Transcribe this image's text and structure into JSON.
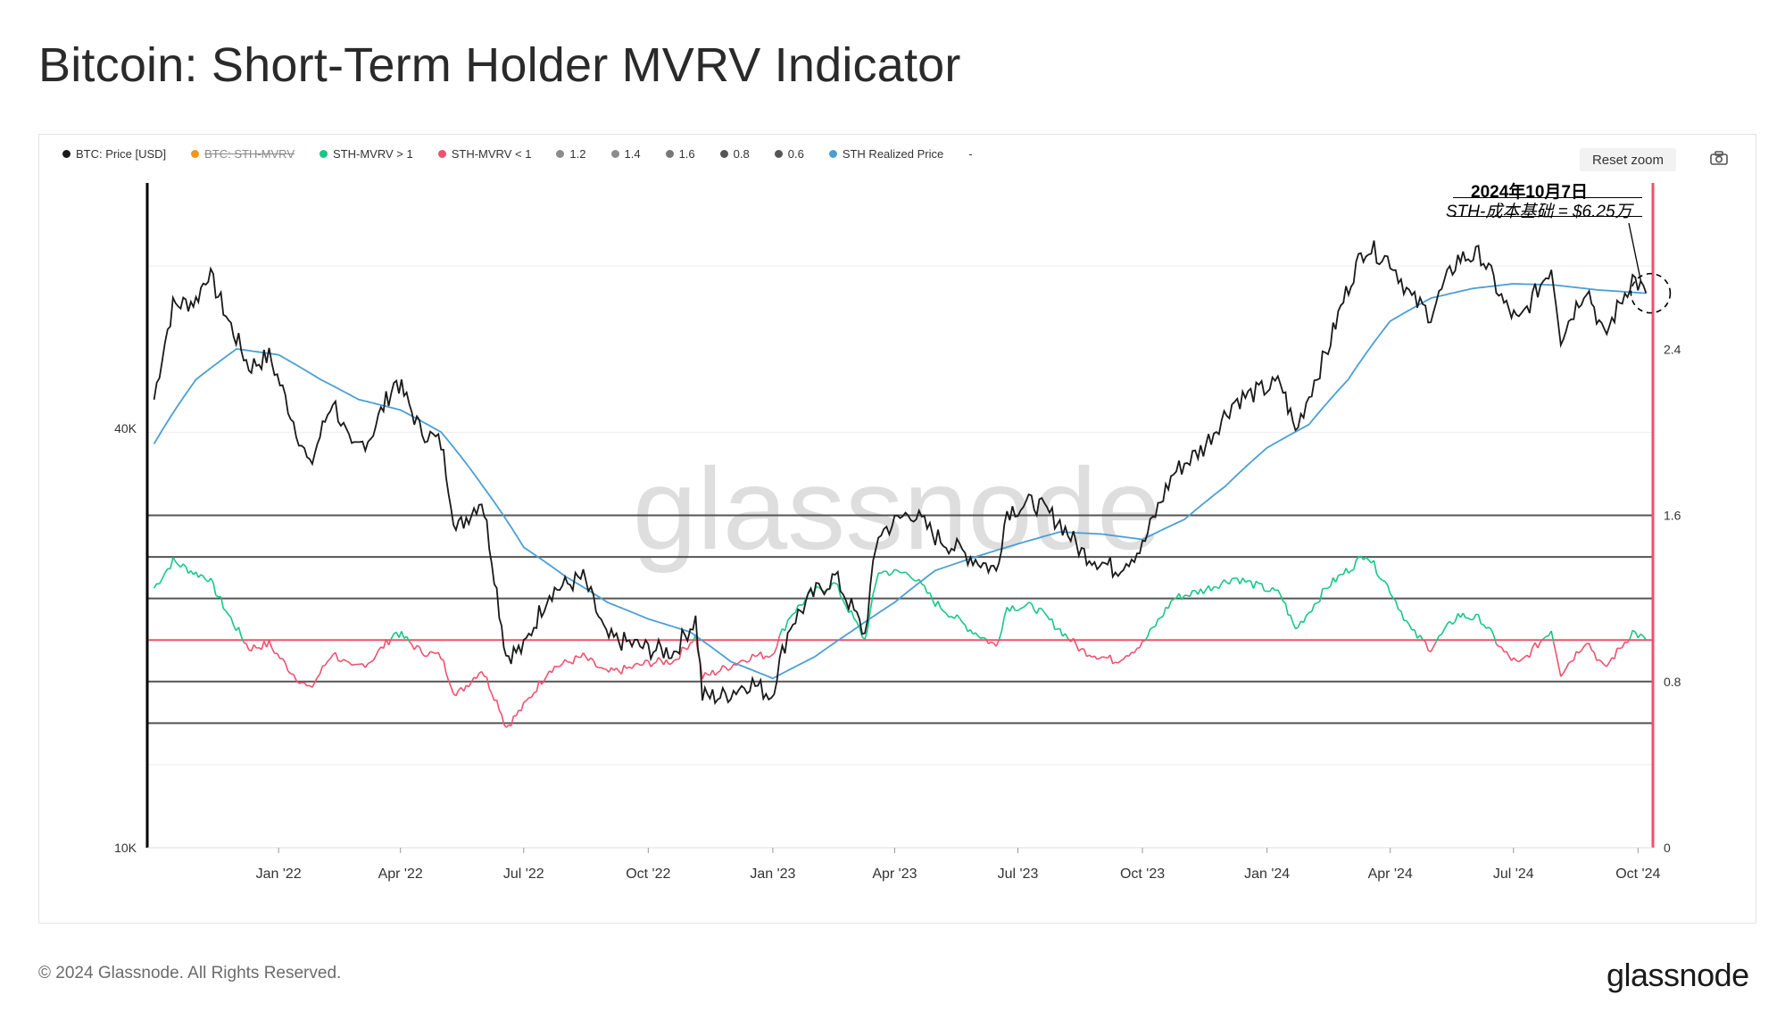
{
  "title": "Bitcoin: Short-Term Holder MVRV Indicator",
  "copyright": "© 2024 Glassnode. All Rights Reserved.",
  "brand": "glassnode",
  "watermark": "glassnode",
  "reset_zoom_label": "Reset zoom",
  "camera_icon": "camera-icon",
  "annotation": {
    "date": "2024年10月7日",
    "note": "STH-成本基础 = $6.25万"
  },
  "legend": [
    {
      "label": "BTC: Price [USD]",
      "color": "#1a1a1a",
      "hidden": false
    },
    {
      "label": "BTC: STH-MVRV",
      "color": "#f7931a",
      "hidden": true
    },
    {
      "label": "STH-MVRV > 1",
      "color": "#16c784",
      "hidden": false
    },
    {
      "label": "STH-MVRV < 1",
      "color": "#f0506e",
      "hidden": false
    },
    {
      "label": "1.2",
      "color": "#8c8c8c",
      "hidden": false
    },
    {
      "label": "1.4",
      "color": "#8c8c8c",
      "hidden": false
    },
    {
      "label": "1.6",
      "color": "#777777",
      "hidden": false
    },
    {
      "label": "0.8",
      "color": "#555555",
      "hidden": false
    },
    {
      "label": "0.6",
      "color": "#555555",
      "hidden": false
    },
    {
      "label": "STH Realized Price",
      "color": "#4a9fd5",
      "hidden": false
    },
    {
      "label": "-",
      "color": "",
      "hidden": false
    }
  ],
  "chart_data": {
    "type": "line",
    "title": "Bitcoin: Short-Term Holder MVRV Indicator",
    "x_ticks": [
      "Jan '22",
      "Apr '22",
      "Jul '22",
      "Oct '22",
      "Jan '23",
      "Apr '23",
      "Jul '23",
      "Oct '23",
      "Jan '24",
      "Apr '24",
      "Jul '24",
      "Oct '24"
    ],
    "y_left": {
      "scale": "log",
      "ticks": [
        "10K",
        "40K"
      ],
      "tick_values": [
        10000,
        40000
      ],
      "range": [
        10000,
        90000
      ]
    },
    "y_right": {
      "scale": "linear",
      "ticks": [
        "0",
        "0.8",
        "1.6",
        "2.4"
      ],
      "tick_values": [
        0,
        0.8,
        1.6,
        2.4
      ],
      "range": [
        0,
        3.2
      ]
    },
    "reference_lines": [
      {
        "name": "1.4",
        "value": 1.4,
        "color": "#555555"
      },
      {
        "name": "1.2",
        "value": 1.2,
        "color": "#555555"
      },
      {
        "name": "1.6",
        "value": 1.6,
        "color": "#555555"
      },
      {
        "name": "0.8",
        "value": 0.8,
        "color": "#555555"
      },
      {
        "name": "0.6",
        "value": 0.6,
        "color": "#555555"
      },
      {
        "name": "1",
        "value": 1.0,
        "color": "#f0506e"
      }
    ],
    "series": [
      {
        "name": "BTC: Price [USD]",
        "axis": "left",
        "color": "#1a1a1a",
        "points": [
          [
            "2021-10-01",
            44000
          ],
          [
            "2021-10-15",
            60000
          ],
          [
            "2021-11-01",
            61000
          ],
          [
            "2021-11-10",
            67000
          ],
          [
            "2021-11-25",
            57000
          ],
          [
            "2021-12-10",
            49000
          ],
          [
            "2021-12-25",
            50800
          ],
          [
            "2022-01-10",
            42000
          ],
          [
            "2022-01-24",
            35000
          ],
          [
            "2022-02-10",
            44000
          ],
          [
            "2022-02-24",
            37000
          ],
          [
            "2022-03-10",
            39000
          ],
          [
            "2022-03-29",
            47000
          ],
          [
            "2022-04-15",
            40000
          ],
          [
            "2022-05-01",
            38000
          ],
          [
            "2022-05-12",
            28500
          ],
          [
            "2022-05-31",
            31700
          ],
          [
            "2022-06-13",
            22000
          ],
          [
            "2022-06-18",
            18900
          ],
          [
            "2022-07-01",
            19300
          ],
          [
            "2022-07-20",
            23300
          ],
          [
            "2022-08-14",
            24400
          ],
          [
            "2022-08-31",
            20000
          ],
          [
            "2022-09-15",
            19700
          ],
          [
            "2022-10-01",
            19300
          ],
          [
            "2022-10-20",
            19100
          ],
          [
            "2022-11-05",
            21300
          ],
          [
            "2022-11-10",
            16500
          ],
          [
            "2022-11-25",
            16500
          ],
          [
            "2022-12-15",
            17300
          ],
          [
            "2022-12-31",
            16550
          ],
          [
            "2023-01-14",
            20900
          ],
          [
            "2023-01-31",
            23100
          ],
          [
            "2023-02-16",
            24500
          ],
          [
            "2023-03-10",
            20200
          ],
          [
            "2023-03-20",
            28200
          ],
          [
            "2023-04-13",
            30400
          ],
          [
            "2023-05-01",
            28000
          ],
          [
            "2023-05-25",
            26300
          ],
          [
            "2023-06-15",
            25000
          ],
          [
            "2023-06-23",
            30500
          ],
          [
            "2023-07-13",
            31300
          ],
          [
            "2023-08-01",
            29300
          ],
          [
            "2023-08-17",
            26600
          ],
          [
            "2023-09-11",
            25100
          ],
          [
            "2023-10-01",
            27000
          ],
          [
            "2023-10-24",
            34500
          ],
          [
            "2023-11-15",
            37500
          ],
          [
            "2023-12-08",
            43800
          ],
          [
            "2024-01-11",
            46500
          ],
          [
            "2024-01-22",
            39500
          ],
          [
            "2024-02-15",
            52000
          ],
          [
            "2024-03-05",
            67000
          ],
          [
            "2024-03-14",
            73000
          ],
          [
            "2024-04-01",
            69700
          ],
          [
            "2024-04-17",
            61300
          ],
          [
            "2024-05-01",
            58300
          ],
          [
            "2024-05-21",
            70100
          ],
          [
            "2024-06-07",
            71000
          ],
          [
            "2024-06-24",
            60300
          ],
          [
            "2024-07-05",
            56600
          ],
          [
            "2024-07-29",
            68200
          ],
          [
            "2024-08-05",
            54000
          ],
          [
            "2024-08-24",
            64000
          ],
          [
            "2024-09-06",
            53900
          ],
          [
            "2024-09-27",
            65800
          ],
          [
            "2024-10-07",
            62500
          ]
        ]
      },
      {
        "name": "STH Realized Price",
        "axis": "left",
        "color": "#4a9fd5",
        "points": [
          [
            "2021-10-01",
            38000
          ],
          [
            "2021-11-01",
            47000
          ],
          [
            "2021-12-01",
            52000
          ],
          [
            "2022-01-01",
            51000
          ],
          [
            "2022-02-01",
            47000
          ],
          [
            "2022-03-01",
            44000
          ],
          [
            "2022-04-01",
            42500
          ],
          [
            "2022-05-01",
            39500
          ],
          [
            "2022-06-01",
            33000
          ],
          [
            "2022-07-01",
            27000
          ],
          [
            "2022-08-01",
            24500
          ],
          [
            "2022-09-01",
            22500
          ],
          [
            "2022-10-01",
            21300
          ],
          [
            "2022-11-01",
            20400
          ],
          [
            "2022-12-01",
            18500
          ],
          [
            "2023-01-01",
            17500
          ],
          [
            "2023-02-01",
            18800
          ],
          [
            "2023-03-01",
            20500
          ],
          [
            "2023-04-01",
            22500
          ],
          [
            "2023-05-01",
            25000
          ],
          [
            "2023-06-01",
            26200
          ],
          [
            "2023-07-01",
            27300
          ],
          [
            "2023-08-01",
            28400
          ],
          [
            "2023-09-01",
            28200
          ],
          [
            "2023-10-01",
            27700
          ],
          [
            "2023-11-01",
            29600
          ],
          [
            "2023-12-01",
            33000
          ],
          [
            "2024-01-01",
            37500
          ],
          [
            "2024-02-01",
            40500
          ],
          [
            "2024-03-01",
            47000
          ],
          [
            "2024-04-01",
            57000
          ],
          [
            "2024-05-01",
            61500
          ],
          [
            "2024-06-01",
            63500
          ],
          [
            "2024-07-01",
            64500
          ],
          [
            "2024-08-01",
            64200
          ],
          [
            "2024-09-01",
            63200
          ],
          [
            "2024-10-07",
            62500
          ]
        ]
      },
      {
        "name": "BTC: STH-MVRV",
        "axis": "right",
        "colors": {
          "above_1": "#16c784",
          "below_1": "#f0506e"
        },
        "points": [
          [
            "2021-10-01",
            1.25
          ],
          [
            "2021-10-15",
            1.38
          ],
          [
            "2021-11-01",
            1.32
          ],
          [
            "2021-11-10",
            1.3
          ],
          [
            "2021-11-25",
            1.12
          ],
          [
            "2021-12-10",
            0.96
          ],
          [
            "2021-12-25",
            0.98
          ],
          [
            "2022-01-10",
            0.85
          ],
          [
            "2022-01-24",
            0.76
          ],
          [
            "2022-02-10",
            0.94
          ],
          [
            "2022-02-24",
            0.86
          ],
          [
            "2022-03-10",
            0.9
          ],
          [
            "2022-03-29",
            1.04
          ],
          [
            "2022-04-15",
            0.95
          ],
          [
            "2022-05-01",
            0.92
          ],
          [
            "2022-05-12",
            0.73
          ],
          [
            "2022-05-31",
            0.86
          ],
          [
            "2022-06-13",
            0.68
          ],
          [
            "2022-06-18",
            0.58
          ],
          [
            "2022-07-01",
            0.68
          ],
          [
            "2022-07-20",
            0.86
          ],
          [
            "2022-08-14",
            0.92
          ],
          [
            "2022-08-31",
            0.84
          ],
          [
            "2022-09-15",
            0.86
          ],
          [
            "2022-10-01",
            0.89
          ],
          [
            "2022-10-20",
            0.9
          ],
          [
            "2022-11-05",
            1.02
          ],
          [
            "2022-11-10",
            0.82
          ],
          [
            "2022-11-25",
            0.86
          ],
          [
            "2022-12-15",
            0.92
          ],
          [
            "2022-12-31",
            0.93
          ],
          [
            "2023-01-14",
            1.12
          ],
          [
            "2023-01-31",
            1.23
          ],
          [
            "2023-02-16",
            1.27
          ],
          [
            "2023-03-10",
            1.0
          ],
          [
            "2023-03-20",
            1.33
          ],
          [
            "2023-04-13",
            1.32
          ],
          [
            "2023-05-01",
            1.18
          ],
          [
            "2023-05-25",
            1.06
          ],
          [
            "2023-06-15",
            0.97
          ],
          [
            "2023-06-23",
            1.16
          ],
          [
            "2023-07-13",
            1.16
          ],
          [
            "2023-08-01",
            1.05
          ],
          [
            "2023-08-17",
            0.95
          ],
          [
            "2023-09-11",
            0.9
          ],
          [
            "2023-10-01",
            0.98
          ],
          [
            "2023-10-24",
            1.2
          ],
          [
            "2023-11-15",
            1.24
          ],
          [
            "2023-12-08",
            1.3
          ],
          [
            "2024-01-11",
            1.22
          ],
          [
            "2024-01-22",
            1.05
          ],
          [
            "2024-02-15",
            1.26
          ],
          [
            "2024-03-05",
            1.36
          ],
          [
            "2024-03-14",
            1.42
          ],
          [
            "2024-04-01",
            1.24
          ],
          [
            "2024-04-17",
            1.04
          ],
          [
            "2024-05-01",
            0.96
          ],
          [
            "2024-05-21",
            1.12
          ],
          [
            "2024-06-07",
            1.1
          ],
          [
            "2024-06-24",
            0.94
          ],
          [
            "2024-07-05",
            0.88
          ],
          [
            "2024-07-29",
            1.05
          ],
          [
            "2024-08-05",
            0.84
          ],
          [
            "2024-08-24",
            1.0
          ],
          [
            "2024-09-06",
            0.86
          ],
          [
            "2024-09-27",
            1.04
          ],
          [
            "2024-10-07",
            1.0
          ]
        ]
      }
    ]
  }
}
